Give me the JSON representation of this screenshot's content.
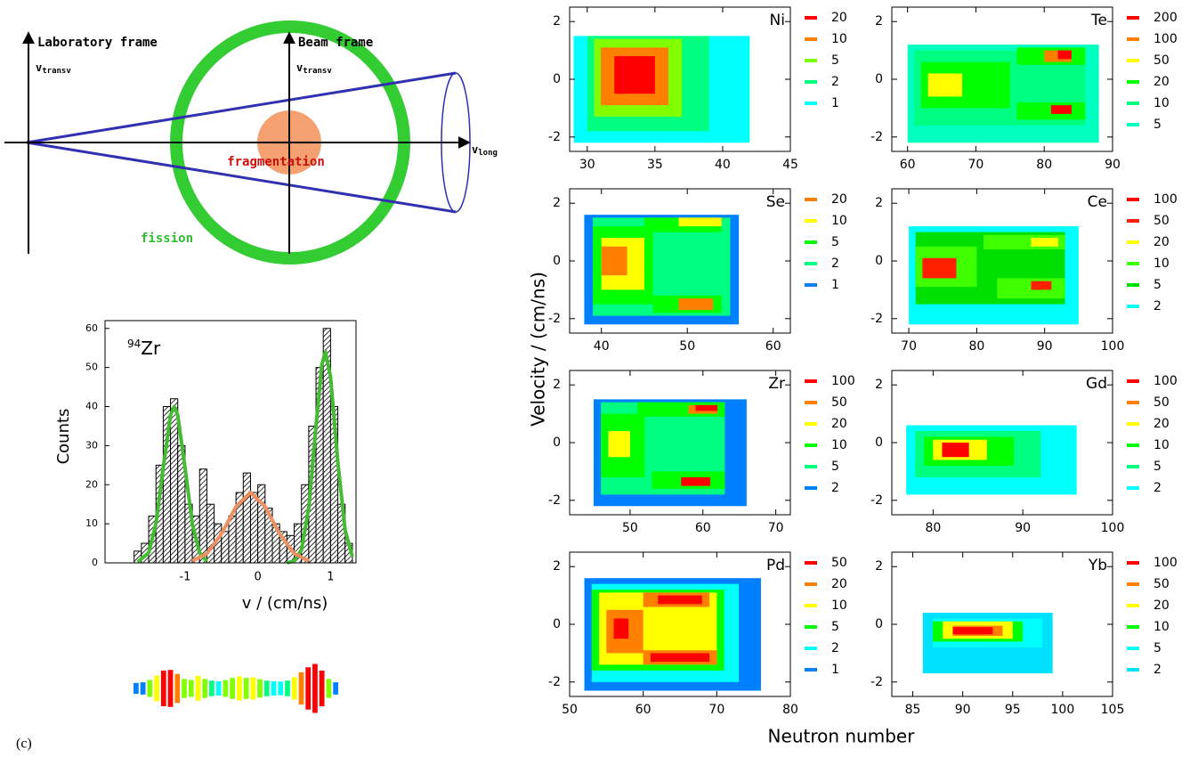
{
  "diagram": {
    "lab_frame": "Laboratory frame",
    "lab_axis": {
      "symbol": "v",
      "subscript": "transv"
    },
    "beam_frame": "Beam frame",
    "beam_axis": {
      "symbol": "v",
      "subscript": "transv"
    },
    "long_axis": {
      "symbol": "v",
      "subscript": "long"
    },
    "fragmentation": "fragmentation",
    "fission": "fission"
  },
  "panel_label": "(c)",
  "y_axis_label": "Velocity / (cm/ns)",
  "x_axis_label": "Neutron number",
  "chart_data": [
    {
      "type": "histogram",
      "annotation_mass": "94",
      "annotation": "Zr",
      "xlabel": "v / (cm/ns)",
      "ylabel": "Counts",
      "bins": [
        -1.7,
        -1.6,
        -1.5,
        -1.4,
        -1.3,
        -1.2,
        -1.1,
        -1.0,
        -0.9,
        -0.8,
        -0.7,
        -0.6,
        -0.5,
        -0.4,
        -0.3,
        -0.2,
        -0.1,
        0.0,
        0.1,
        0.2,
        0.3,
        0.4,
        0.5,
        0.6,
        0.7,
        0.8,
        0.9,
        1.0,
        1.1,
        1.2,
        1.3
      ],
      "values": [
        3,
        5,
        12,
        25,
        40,
        42,
        30,
        15,
        12,
        24,
        15,
        10,
        8,
        12,
        18,
        23,
        18,
        20,
        14,
        10,
        8,
        7,
        10,
        20,
        35,
        50,
        60,
        40,
        15,
        5
      ],
      "xlim": [
        -2.1,
        1.35
      ],
      "ylim": [
        0,
        62
      ],
      "xticks": [
        -1,
        0,
        1
      ],
      "yticks": [
        0,
        10,
        20,
        30,
        40,
        50,
        60
      ],
      "fits": [
        {
          "color": "#44bb33",
          "x": [
            -1.65,
            -1.5,
            -1.4,
            -1.3,
            -1.2,
            -1.15,
            -1.1,
            -1.0,
            -0.9,
            -0.8,
            -0.7,
            -0.2,
            0.4,
            0.5,
            0.6,
            0.7,
            0.8,
            0.88,
            0.93,
            1.0,
            1.1,
            1.2,
            1.3
          ],
          "values": [
            0.2,
            2.6,
            10,
            24.3,
            37.8,
            40,
            37.8,
            24.3,
            10,
            2.6,
            0.4,
            null,
            0,
            0.5,
            3.3,
            14,
            35,
            50.7,
            54,
            47.6,
            25.8,
            8.4,
            1.6
          ]
        },
        {
          "color": "#f09060",
          "x": [
            -0.9,
            -0.7,
            -0.5,
            -0.3,
            -0.1,
            0.1,
            0.3,
            0.5,
            0.7
          ],
          "values": [
            0.5,
            2.4,
            7.4,
            14.4,
            18,
            14.4,
            7.4,
            2.4,
            0.5
          ]
        }
      ]
    },
    {
      "type": "heatmap",
      "title": "Ni",
      "xlim": [
        28.7,
        45
      ],
      "ylim": [
        -2.5,
        2.5
      ],
      "xticks": [
        30,
        35,
        40,
        45
      ],
      "yticks": [
        -2,
        0,
        2
      ],
      "levels": [
        20,
        10,
        5,
        2,
        1
      ],
      "level_colors": [
        "#ff0000",
        "#ff8000",
        "#80ff00",
        "#00ff80",
        "#00ffff"
      ],
      "cells": [
        [
          29,
          42,
          -2.2,
          1.5,
          1
        ],
        [
          30,
          39,
          -1.8,
          1.5,
          2
        ],
        [
          30.5,
          37,
          -1.3,
          1.4,
          5
        ],
        [
          31,
          36,
          -0.9,
          1.1,
          10
        ],
        [
          32,
          35,
          -0.5,
          0.8,
          20
        ]
      ]
    },
    {
      "type": "heatmap",
      "title": "Te",
      "xlim": [
        57.7,
        90
      ],
      "ylim": [
        -2.5,
        2.5
      ],
      "xticks": [
        60,
        70,
        80,
        90
      ],
      "yticks": [
        -2,
        0,
        2
      ],
      "levels": [
        200,
        100,
        50,
        20,
        10,
        5
      ],
      "level_colors": [
        "#ff0000",
        "#ff8000",
        "#ffff00",
        "#00ff00",
        "#00ff80",
        "#00ffc0"
      ],
      "cells": [
        [
          60,
          88,
          -2.2,
          1.2,
          5
        ],
        [
          61,
          86,
          -1.6,
          1.0,
          10
        ],
        [
          62,
          75,
          -1.0,
          0.6,
          20
        ],
        [
          63,
          68,
          -0.6,
          0.2,
          50
        ],
        [
          76,
          86,
          0.5,
          1.1,
          20
        ],
        [
          76,
          86,
          -1.4,
          -0.8,
          20
        ],
        [
          80,
          84,
          0.6,
          1.0,
          100
        ],
        [
          82,
          84,
          0.7,
          1.0,
          200
        ],
        [
          81,
          84,
          -1.2,
          -0.9,
          200
        ]
      ]
    },
    {
      "type": "heatmap",
      "title": "Se",
      "xlim": [
        36.3,
        62
      ],
      "ylim": [
        -2.5,
        2.5
      ],
      "xticks": [
        40,
        50,
        60
      ],
      "yticks": [
        -2,
        0,
        2
      ],
      "levels": [
        20,
        10,
        5,
        2,
        1
      ],
      "level_colors": [
        "#ff8000",
        "#ffff00",
        "#00ff00",
        "#00ff80",
        "#0080ff"
      ],
      "cells": [
        [
          38,
          56,
          -2.2,
          1.6,
          1
        ],
        [
          39,
          55,
          -1.9,
          1.5,
          2
        ],
        [
          39,
          46,
          -1.5,
          1.2,
          5
        ],
        [
          40,
          45,
          -1,
          0.8,
          10
        ],
        [
          40,
          43,
          -0.5,
          0.5,
          20
        ],
        [
          45,
          54,
          1.0,
          1.5,
          5
        ],
        [
          49,
          54,
          1.2,
          1.5,
          10
        ],
        [
          46,
          54,
          -1.8,
          -1.2,
          5
        ],
        [
          49,
          53,
          -1.7,
          -1.3,
          20
        ]
      ]
    },
    {
      "type": "heatmap",
      "title": "Ce",
      "xlim": [
        67.5,
        100
      ],
      "ylim": [
        -2.5,
        2.5
      ],
      "xticks": [
        70,
        80,
        90,
        100
      ],
      "yticks": [
        -2,
        0,
        2
      ],
      "levels": [
        100,
        50,
        20,
        10,
        5,
        2
      ],
      "level_colors": [
        "#ff0000",
        "#ff2000",
        "#ffff00",
        "#40ff00",
        "#00e000",
        "#00ffff"
      ],
      "cells": [
        [
          70,
          95,
          -2.2,
          1.2,
          2
        ],
        [
          71,
          93,
          -1.5,
          1.0,
          5
        ],
        [
          71,
          80,
          -0.9,
          0.5,
          10
        ],
        [
          72,
          77,
          -0.6,
          0.1,
          50
        ],
        [
          81,
          93,
          0.4,
          0.9,
          10
        ],
        [
          83,
          93,
          -1.3,
          -0.6,
          10
        ],
        [
          88,
          92,
          0.5,
          0.8,
          20
        ],
        [
          88,
          91,
          -1.0,
          -0.7,
          50
        ]
      ]
    },
    {
      "type": "heatmap",
      "title": "Zr",
      "xlim": [
        41.7,
        72
      ],
      "ylim": [
        -2.5,
        2.5
      ],
      "xticks": [
        50,
        60,
        70
      ],
      "yticks": [
        -2,
        0,
        2
      ],
      "levels": [
        100,
        50,
        20,
        10,
        5,
        2
      ],
      "level_colors": [
        "#ff0000",
        "#ff8000",
        "#ffff00",
        "#00ff00",
        "#00ff80",
        "#0080ff"
      ],
      "cells": [
        [
          45,
          66,
          -2.2,
          1.5,
          2
        ],
        [
          46,
          63,
          -1.8,
          1.4,
          5
        ],
        [
          46,
          52,
          -1.2,
          1.0,
          10
        ],
        [
          47,
          50,
          -0.5,
          0.4,
          20
        ],
        [
          51,
          63,
          0.9,
          1.4,
          10
        ],
        [
          53,
          63,
          -1.6,
          -1.0,
          10
        ],
        [
          58,
          62,
          1.0,
          1.3,
          50
        ],
        [
          57,
          61,
          -1.5,
          -1.2,
          100
        ],
        [
          59,
          62,
          1.1,
          1.3,
          100
        ]
      ]
    },
    {
      "type": "heatmap",
      "title": "Gd",
      "xlim": [
        75.4,
        100
      ],
      "ylim": [
        -2.5,
        2.5
      ],
      "xticks": [
        80,
        90,
        100
      ],
      "yticks": [
        -2,
        0,
        2
      ],
      "levels": [
        100,
        50,
        20,
        10,
        5,
        2
      ],
      "level_colors": [
        "#ff0000",
        "#ff8000",
        "#ffff00",
        "#00ff00",
        "#00ff80",
        "#00ffff"
      ],
      "cells": [
        [
          77,
          96,
          -1.8,
          0.6,
          2
        ],
        [
          78,
          92,
          -1.2,
          0.4,
          5
        ],
        [
          79,
          89,
          -0.8,
          0.2,
          10
        ],
        [
          80,
          86,
          -0.6,
          0.1,
          20
        ],
        [
          81,
          84,
          -0.5,
          0,
          100
        ]
      ]
    },
    {
      "type": "heatmap",
      "title": "Pd",
      "xlim": [
        50,
        80
      ],
      "ylim": [
        -2.5,
        2.5
      ],
      "xticks": [
        50,
        60,
        70,
        80
      ],
      "yticks": [
        -2,
        0,
        2
      ],
      "levels": [
        50,
        20,
        10,
        5,
        2,
        1
      ],
      "level_colors": [
        "#ff0000",
        "#ff8000",
        "#ffff00",
        "#00ff00",
        "#00ffff",
        "#0080ff"
      ],
      "cells": [
        [
          52,
          76,
          -2.3,
          1.6,
          1
        ],
        [
          53,
          73,
          -2.0,
          1.4,
          2
        ],
        [
          53,
          71,
          -1.6,
          1.2,
          5
        ],
        [
          54,
          70,
          -1.4,
          1.1,
          10
        ],
        [
          55,
          60,
          -1,
          0.5,
          20
        ],
        [
          56,
          58,
          -0.5,
          0.2,
          50
        ],
        [
          60,
          69,
          0.6,
          1.1,
          20
        ],
        [
          62,
          68,
          0.7,
          1.0,
          50
        ],
        [
          60,
          70,
          -1.4,
          -0.9,
          20
        ],
        [
          61,
          69,
          -1.3,
          -1.0,
          50
        ]
      ]
    },
    {
      "type": "heatmap",
      "title": "Yb",
      "xlim": [
        82.9,
        105
      ],
      "ylim": [
        -2.5,
        2.5
      ],
      "xticks": [
        85,
        90,
        95,
        100,
        105
      ],
      "yticks": [
        -2,
        0,
        2
      ],
      "levels": [
        100,
        50,
        20,
        10,
        5,
        2
      ],
      "level_colors": [
        "#ff0000",
        "#ff8000",
        "#ffff00",
        "#00ff00",
        "#00ffff",
        "#00e0ff"
      ],
      "cells": [
        [
          86,
          99,
          -1.7,
          0.4,
          2
        ],
        [
          87,
          98,
          -0.8,
          0.2,
          5
        ],
        [
          87,
          96,
          -0.6,
          0.1,
          10
        ],
        [
          88,
          95,
          -0.5,
          0.1,
          20
        ],
        [
          89,
          94,
          -0.4,
          -0.05,
          50
        ],
        [
          89,
          93,
          -0.35,
          -0.1,
          100
        ]
      ]
    }
  ]
}
